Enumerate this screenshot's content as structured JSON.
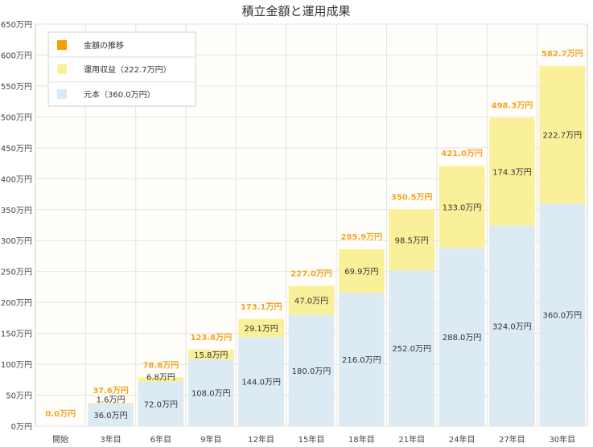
{
  "chart_data": {
    "type": "bar",
    "stacked": true,
    "title": "積立金額と運用成果",
    "categories": [
      "開始",
      "3年目",
      "6年目",
      "9年目",
      "12年目",
      "15年目",
      "18年目",
      "21年目",
      "24年目",
      "27年目",
      "30年目"
    ],
    "ylim": [
      0,
      650
    ],
    "y_ticks": [
      0,
      50,
      100,
      150,
      200,
      250,
      300,
      350,
      400,
      450,
      500,
      550,
      600,
      650
    ],
    "y_unit": "万円",
    "series": [
      {
        "name": "元本",
        "color": "#dceaf3",
        "values": [
          0,
          36.0,
          72.0,
          108.0,
          144.0,
          180.0,
          216.0,
          252.0,
          288.0,
          324.0,
          360.0
        ]
      },
      {
        "name": "運用収益",
        "color": "#fbf09a",
        "values": [
          0,
          1.6,
          6.8,
          15.8,
          29.1,
          47.0,
          69.9,
          98.5,
          133.0,
          174.3,
          222.7
        ]
      }
    ],
    "totals": [
      0.0,
      37.6,
      78.8,
      123.8,
      173.1,
      227.0,
      285.9,
      350.5,
      421.0,
      498.3,
      582.7
    ],
    "totals_color": "#f5a623",
    "principal_labels": [
      "",
      "36.0万円",
      "72.0万円",
      "108.0万円",
      "144.0万円",
      "180.0万円",
      "216.0万円",
      "252.0万円",
      "288.0万円",
      "324.0万円",
      "360.0万円"
    ],
    "return_labels": [
      "",
      "1.6万円",
      "6.8万円",
      "15.8万円",
      "29.1万円",
      "47.0万円",
      "69.9万円",
      "98.5万円",
      "133.0万円",
      "174.3万円",
      "222.7万円"
    ],
    "total_labels": [
      "0.0万円",
      "37.6万円",
      "78.8万円",
      "123.8万円",
      "173.1万円",
      "227.0万円",
      "285.9万円",
      "350.5万円",
      "421.0万円",
      "498.3万円",
      "582.7万円"
    ],
    "legend": {
      "position": "top-left",
      "items": [
        {
          "label": "金額の推移",
          "color": "#f5a000"
        },
        {
          "label": "運用収益（222.7万円）",
          "color": "#fbf09a"
        },
        {
          "label": "元本（360.0万円）",
          "color": "#dceaf3"
        }
      ]
    }
  }
}
